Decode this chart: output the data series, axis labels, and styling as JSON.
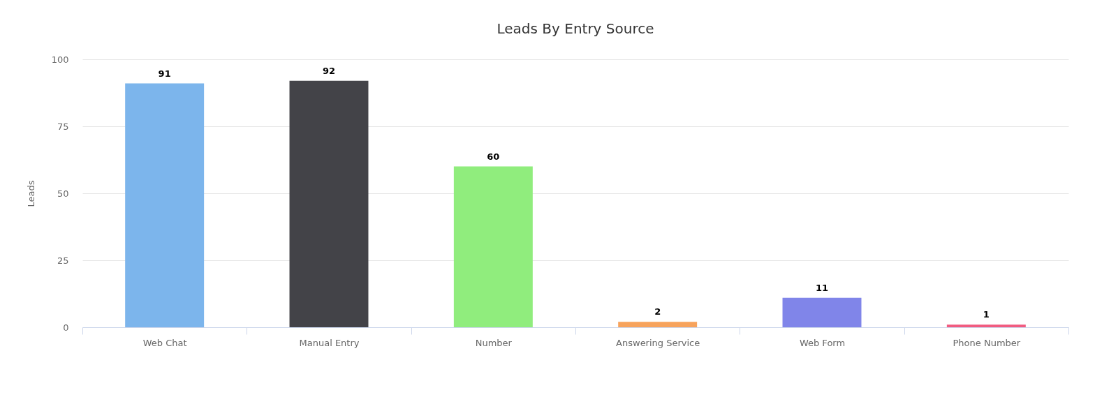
{
  "chart_data": {
    "type": "bar",
    "title": "Leads By Entry Source",
    "ylabel": "Leads",
    "categories": [
      "Web Chat",
      "Manual Entry",
      "Number",
      "Answering Service",
      "Web Form",
      "Phone Number"
    ],
    "values": [
      91,
      92,
      60,
      2,
      11,
      1
    ],
    "colors": [
      "#7cb5ec",
      "#434348",
      "#90ed7d",
      "#f7a35c",
      "#8085e9",
      "#f15c80"
    ],
    "ylim": [
      0,
      100
    ],
    "yticks": [
      0,
      25,
      50,
      75,
      100
    ],
    "grid": "y",
    "data_labels": true
  }
}
